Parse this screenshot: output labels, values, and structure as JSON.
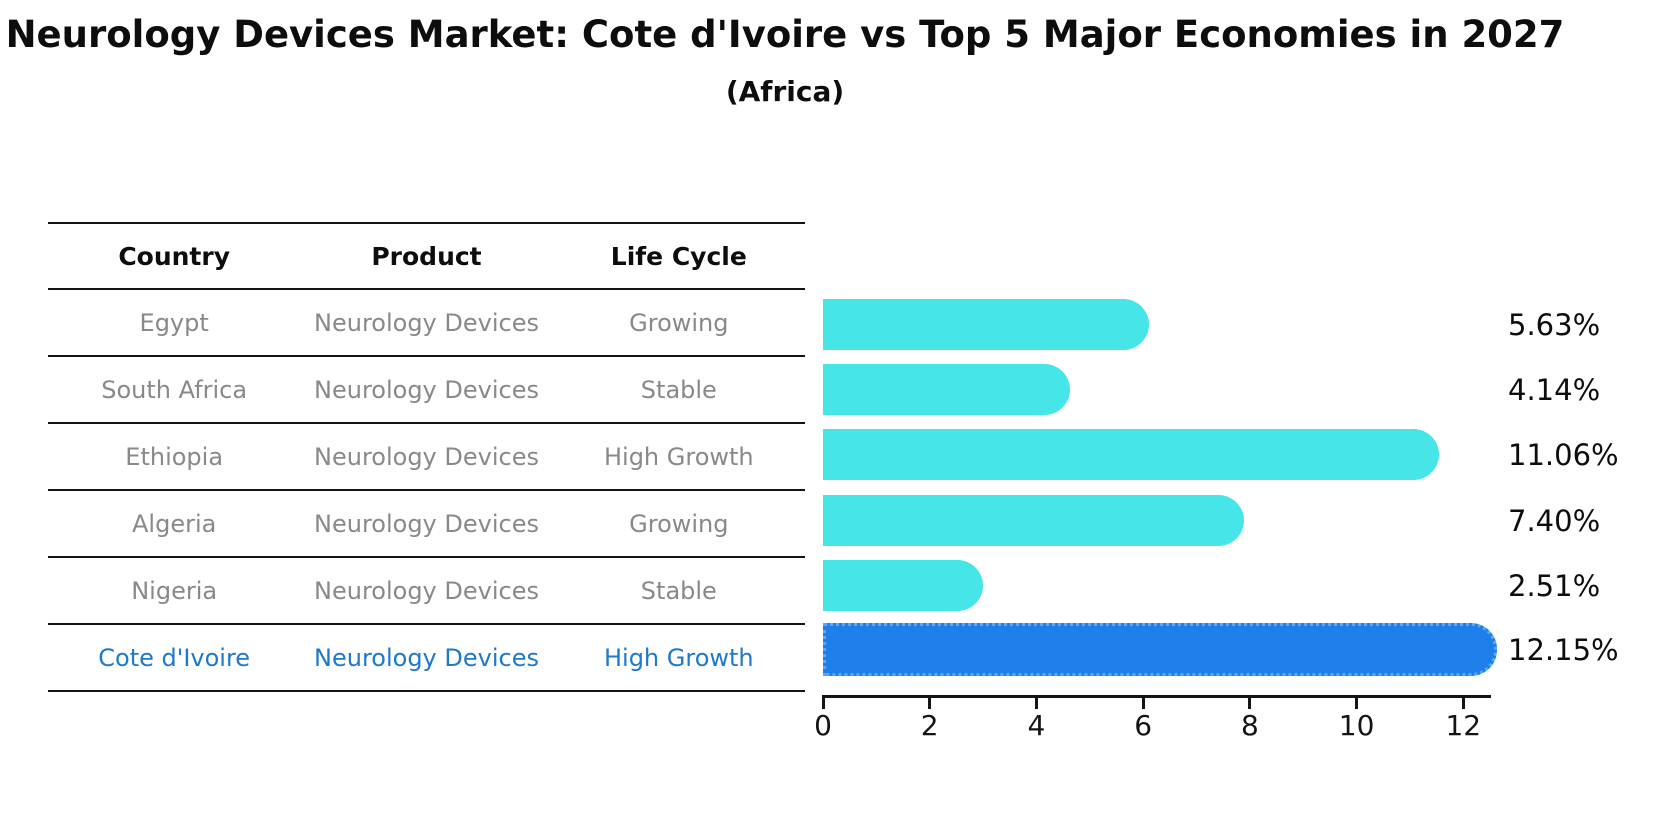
{
  "title": "Neurology Devices Market: Cote d'Ivoire vs Top 5 Major Economies in 2027",
  "subtitle": "(Africa)",
  "table": {
    "headers": [
      "Country",
      "Product",
      "Life Cycle"
    ],
    "rows": [
      {
        "country": "Egypt",
        "product": "Neurology Devices",
        "life_cycle": "Growing",
        "highlighted": false
      },
      {
        "country": "South Africa",
        "product": "Neurology Devices",
        "life_cycle": "Stable",
        "highlighted": false
      },
      {
        "country": "Ethiopia",
        "product": "Neurology Devices",
        "life_cycle": "High Growth",
        "highlighted": false
      },
      {
        "country": "Algeria",
        "product": "Neurology Devices",
        "life_cycle": "Growing",
        "highlighted": false
      },
      {
        "country": "Nigeria",
        "product": "Neurology Devices",
        "life_cycle": "Stable",
        "highlighted": false
      },
      {
        "country": "Cote d'Ivoire",
        "product": "Neurology Devices",
        "life_cycle": "High Growth",
        "highlighted": true
      }
    ]
  },
  "chart_data": {
    "type": "bar",
    "orientation": "horizontal",
    "title": "Neurology Devices Market: Cote d'Ivoire vs Top 5 Major Economies in 2027",
    "subtitle": "(Africa)",
    "categories": [
      "Egypt",
      "South Africa",
      "Ethiopia",
      "Algeria",
      "Nigeria",
      "Cote d'Ivoire"
    ],
    "values": [
      5.63,
      4.14,
      11.06,
      7.4,
      2.51,
      12.15
    ],
    "value_labels": [
      "5.63%",
      "4.14%",
      "11.06%",
      "7.40%",
      "2.51%",
      "12.15%"
    ],
    "x_ticks": [
      0,
      2,
      4,
      6,
      8,
      10,
      12
    ],
    "xlim": [
      0,
      12.5
    ],
    "grid": false,
    "legend": "none",
    "bar_color": "#45E5E8",
    "highlight_bar_color": "#1E7FEA",
    "highlight_border_color": "#5AA9F7",
    "highlight_text_color": "#1E78CB",
    "axis_color": "#141414",
    "highlight_index": 5
  }
}
